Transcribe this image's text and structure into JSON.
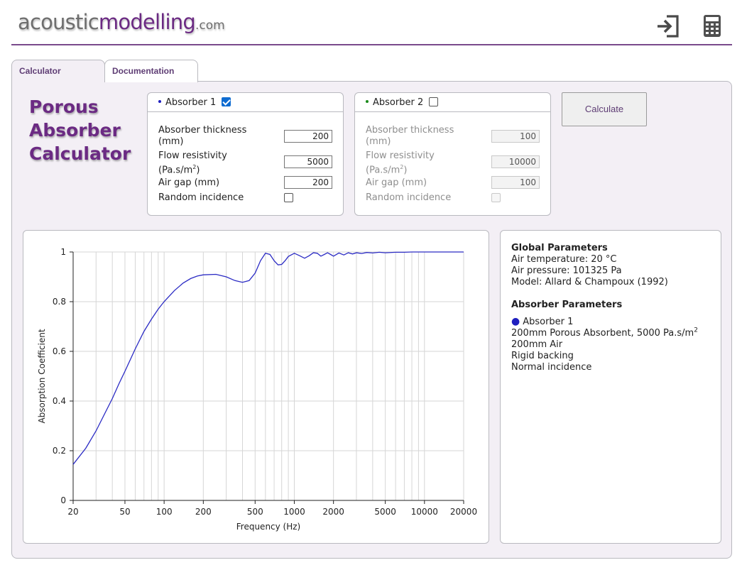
{
  "header": {
    "logo_part1": "acoustic",
    "logo_part2": "modelling",
    "logo_part3": ".com"
  },
  "tabs": [
    {
      "label": "Calculator",
      "active": true
    },
    {
      "label": "Documentation",
      "active": false
    }
  ],
  "title": {
    "line1": "Porous",
    "line2": "Absorber",
    "line3": "Calculator"
  },
  "absorber1": {
    "name": "Absorber 1",
    "enabled": true,
    "color": "#1f1fbf",
    "thickness_label": "Absorber thickness",
    "thickness_unit": "(mm)",
    "thickness": "200",
    "flow_label": "Flow resistivity",
    "flow_unit": "(Pa.s/m",
    "flow_unit_sup": "2",
    "flow_unit_end": ")",
    "flow": "5000",
    "airgap_label": "Air gap (mm)",
    "airgap": "200",
    "random_label": "Random incidence",
    "random": false
  },
  "absorber2": {
    "name": "Absorber 2",
    "enabled": false,
    "color": "#1a8a1a",
    "thickness_label": "Absorber thickness",
    "thickness_unit": "(mm)",
    "thickness": "100",
    "flow_label": "Flow resistivity",
    "flow_unit": "(Pa.s/m",
    "flow_unit_sup": "2",
    "flow_unit_end": ")",
    "flow": "10000",
    "airgap_label": "Air gap (mm)",
    "airgap": "100",
    "random_label": "Random incidence",
    "random": false
  },
  "calculate_label": "Calculate",
  "info": {
    "global_heading": "Global Parameters",
    "air_temperature": "Air temperature: 20 °C",
    "air_pressure": "Air pressure: 101325 Pa",
    "model": "Model: Allard & Champoux (1992)",
    "absorber_heading": "Absorber Parameters",
    "absorber_name": "Absorber 1",
    "line1": "200mm Porous Absorbent, 5000 Pa.s/m",
    "line1_sup": "2",
    "line2": "200mm Air",
    "line3": "Rigid backing",
    "line4": "Normal incidence"
  },
  "chart_data": {
    "type": "line",
    "xlabel": "Frequency (Hz)",
    "ylabel": "Absorption Coefficient",
    "xscale": "log",
    "xlim": [
      20,
      20000
    ],
    "ylim": [
      0,
      1
    ],
    "x_ticks": [
      20,
      50,
      100,
      200,
      500,
      1000,
      2000,
      5000,
      10000,
      20000
    ],
    "y_ticks": [
      0,
      0.2,
      0.4,
      0.6,
      0.8,
      1
    ],
    "grid": true,
    "series": [
      {
        "name": "Absorber 1",
        "color": "#2b2bc4",
        "x": [
          20,
          25,
          30,
          35,
          40,
          45,
          50,
          60,
          70,
          80,
          90,
          100,
          120,
          140,
          160,
          180,
          200,
          250,
          300,
          350,
          400,
          450,
          500,
          550,
          600,
          650,
          700,
          750,
          800,
          850,
          900,
          1000,
          1100,
          1200,
          1300,
          1400,
          1500,
          1600,
          1700,
          1800,
          1900,
          2000,
          2200,
          2400,
          2600,
          2800,
          3000,
          3300,
          3600,
          4000,
          4500,
          5000,
          6000,
          7000,
          8000,
          10000,
          12000,
          15000,
          20000
        ],
        "y": [
          0.145,
          0.21,
          0.28,
          0.35,
          0.41,
          0.47,
          0.52,
          0.61,
          0.68,
          0.73,
          0.77,
          0.8,
          0.845,
          0.875,
          0.893,
          0.903,
          0.908,
          0.91,
          0.9,
          0.885,
          0.878,
          0.885,
          0.915,
          0.965,
          0.995,
          0.99,
          0.965,
          0.948,
          0.95,
          0.965,
          0.982,
          0.995,
          0.985,
          0.975,
          0.985,
          0.997,
          0.995,
          0.983,
          0.99,
          0.997,
          0.99,
          0.983,
          0.996,
          0.988,
          0.997,
          0.992,
          0.997,
          0.994,
          0.998,
          0.996,
          0.999,
          0.997,
          0.999,
          0.999,
          1.0,
          1.0,
          1.0,
          1.0,
          1.0
        ]
      }
    ]
  }
}
